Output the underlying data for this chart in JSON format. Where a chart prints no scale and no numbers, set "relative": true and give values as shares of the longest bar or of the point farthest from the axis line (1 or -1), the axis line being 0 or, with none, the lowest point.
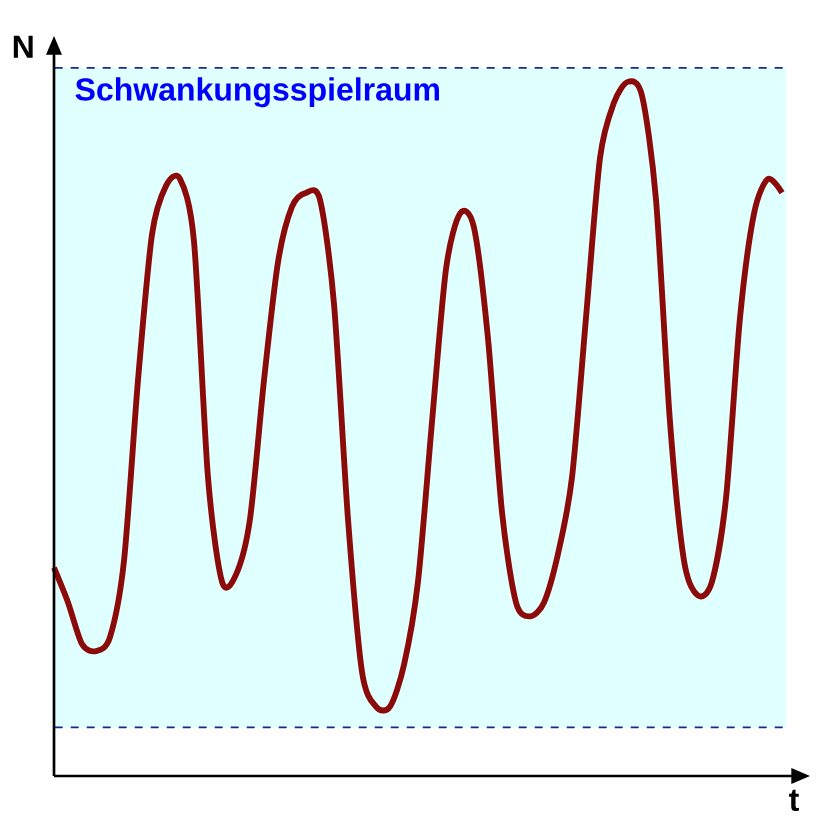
{
  "chart_data": {
    "type": "line",
    "relative": true,
    "xlabel": "t",
    "ylabel": "N",
    "color": "#8b0a0a",
    "categories": [
      null,
      null,
      null,
      null,
      null,
      null,
      null,
      null,
      null,
      null,
      null,
      null,
      null,
      null,
      null,
      null,
      null,
      null,
      null,
      null,
      null,
      null,
      null,
      null,
      null,
      null,
      null,
      null,
      null,
      null,
      null,
      null,
      null,
      null,
      null,
      null,
      null,
      null,
      null,
      null,
      null,
      null,
      null,
      null,
      null,
      null,
      null,
      null,
      null,
      null,
      null,
      null,
      null
    ],
    "values": [
      0.3,
      0.25,
      0.19,
      0.18,
      0.2,
      0.31,
      0.57,
      0.78,
      0.85,
      0.86,
      0.77,
      0.43,
      0.28,
      0.29,
      0.37,
      0.57,
      0.74,
      0.82,
      0.84,
      0.83,
      0.68,
      0.37,
      0.15,
      0.1,
      0.1,
      0.16,
      0.28,
      0.51,
      0.73,
      0.81,
      0.79,
      0.63,
      0.38,
      0.25,
      0.23,
      0.25,
      0.32,
      0.43,
      0.66,
      0.89,
      0.97,
      1,
      0.98,
      0.83,
      0.51,
      0.31,
      0.26,
      0.28,
      0.4,
      0.66,
      0.81,
      0.86,
      0.84
    ],
    "bands": [
      {
        "axis": "y",
        "from": 0.07,
        "to": 1.02,
        "label": "Schwankungsspielraum",
        "color": "#e0ffff"
      }
    ],
    "ref_lines": [
      {
        "axis": "y",
        "value": 0.07,
        "line_style": "dashed",
        "color": "#1a2a8a"
      },
      {
        "axis": "y",
        "value": 1.02,
        "line_style": "dashed",
        "color": "#1a2a8a"
      }
    ]
  }
}
